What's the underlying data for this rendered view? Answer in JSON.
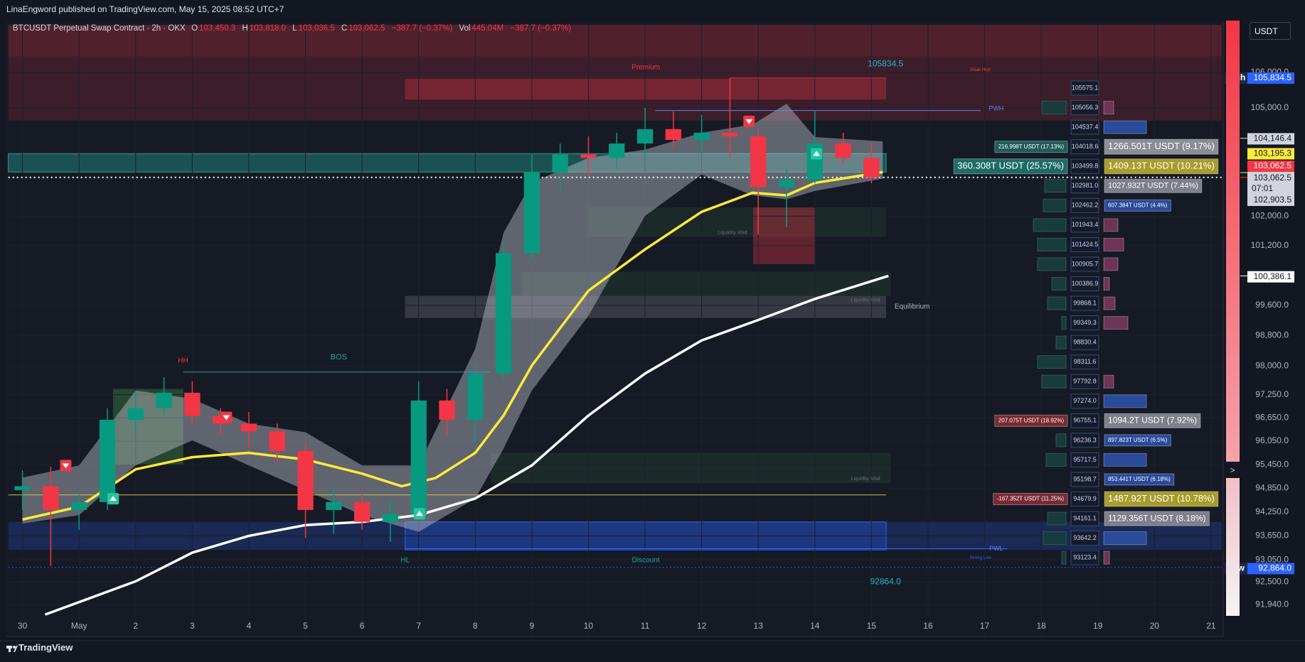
{
  "header": {
    "published": "LinaEngword published on TradingView.com, May 15, 2025 08:52 UTC+7",
    "currency": "USDT",
    "brand": "TradingView"
  },
  "legend": {
    "symbol": "BTCUSDT Perpetual Swap Contract · 2h · OKX",
    "ohlc": [
      {
        "k": "O",
        "v": "103,450.3"
      },
      {
        "k": "H",
        "v": "103,818.0"
      },
      {
        "k": "L",
        "v": "103,036.5"
      },
      {
        "k": "C",
        "v": "103,062.5"
      }
    ],
    "change": "−387.7 (−0.37%)",
    "vol_label": "Vol",
    "vol": "445.04M",
    "vol_change": "−387.7 (−0.37%)"
  },
  "chart_data": {
    "type": "candlestick",
    "log_scale": true,
    "grid": true,
    "up_color": "#089981",
    "down_color": "#f23645",
    "xlim": [
      -0.25,
      21.19
    ],
    "ylim": [
      91167,
      107350
    ],
    "xticks": [
      {
        "value": 0,
        "label": "30"
      },
      {
        "value": 1,
        "label": "May"
      },
      2,
      3,
      4,
      5,
      6,
      7,
      8,
      9,
      10,
      11,
      12,
      13,
      14,
      15,
      16,
      17,
      18,
      19,
      20,
      21
    ],
    "yticks": [
      {
        "value": 106000,
        "label": "106,000.0"
      },
      {
        "value": 105000,
        "label": "105,000.0"
      },
      {
        "value": 102000,
        "label": "102,000.0"
      },
      {
        "value": 101200,
        "label": "101,200.0"
      },
      {
        "value": 99600,
        "label": "99,600.0"
      },
      {
        "value": 98800,
        "label": "98,800.0"
      },
      {
        "value": 98000,
        "label": "98,000.0"
      },
      {
        "value": 97250,
        "label": "97,250.0"
      },
      {
        "value": 96650,
        "label": "96,650.0"
      },
      {
        "value": 96050,
        "label": "96,050.0"
      },
      {
        "value": 95450,
        "label": "95,450.0"
      },
      {
        "value": 94850,
        "label": "94,850.0"
      },
      {
        "value": 94250,
        "label": "94,250.0"
      },
      {
        "value": 93650,
        "label": "93,650.0"
      },
      {
        "value": 93050,
        "label": "93,050.0"
      },
      {
        "value": 92500,
        "label": "92,500.0"
      },
      {
        "value": 91940,
        "label": "91,940.0"
      }
    ],
    "candles": {
      "x": [
        0,
        0.5,
        1,
        1.5,
        2,
        2.5,
        3,
        3.5,
        4,
        4.5,
        5,
        5.5,
        6,
        6.5,
        7,
        7.5,
        8,
        8.5,
        9,
        9.5,
        10,
        10.5,
        11,
        11.5,
        12,
        12.5,
        13,
        13.5,
        14,
        14.5,
        15
      ],
      "open": [
        94800,
        94900,
        94300,
        94500,
        96600,
        96900,
        97300,
        96700,
        96500,
        96300,
        95800,
        94300,
        94500,
        94000,
        94200,
        97100,
        96600,
        97800,
        101000,
        103200,
        103700,
        103600,
        104000,
        104400,
        104100,
        104300,
        104200,
        102800,
        103000,
        104000,
        103600
      ],
      "high": [
        95300,
        95400,
        94700,
        96900,
        97300,
        97700,
        97600,
        96900,
        96800,
        96500,
        96000,
        94900,
        94700,
        94600,
        97600,
        97400,
        98000,
        101300,
        103700,
        104000,
        104200,
        104300,
        105000,
        104900,
        104800,
        105834.5,
        104400,
        103300,
        104900,
        104300,
        104000
      ],
      "low": [
        94300,
        92900,
        93800,
        94300,
        96300,
        96700,
        96500,
        96200,
        95900,
        95500,
        93600,
        93700,
        93800,
        93500,
        94000,
        96200,
        96000,
        97600,
        100800,
        102700,
        103100,
        103300,
        103600,
        103900,
        103700,
        103600,
        101500,
        101700,
        102900,
        103400,
        102900
      ],
      "close": [
        94900,
        94300,
        94500,
        96600,
        96900,
        97300,
        96700,
        96500,
        96300,
        95800,
        94300,
        94500,
        94000,
        94200,
        97100,
        96600,
        97800,
        101000,
        103200,
        103700,
        103600,
        104000,
        104400,
        104100,
        104300,
        104200,
        102800,
        103000,
        104000,
        103600,
        103062.5
      ]
    },
    "lines": [
      {
        "color": "#ffeb3b",
        "width": 3.5,
        "x": [
          0,
          1,
          2,
          3,
          4,
          5,
          6,
          6.7,
          7.3,
          8,
          8.5,
          9,
          10,
          11,
          12,
          12.9,
          13.5,
          14,
          15.2
        ],
        "values": [
          94060,
          94380,
          95330,
          95640,
          95750,
          95580,
          95220,
          94900,
          95110,
          95750,
          96710,
          98010,
          99990,
          101100,
          102120,
          102640,
          102570,
          102910,
          103210
        ]
      },
      {
        "color": "#ffffff",
        "width": 3.5,
        "x": [
          0.4,
          2,
          3,
          4,
          5,
          6,
          7,
          8,
          9,
          10,
          11,
          12,
          13,
          14,
          15.3
        ],
        "values": [
          91700,
          92520,
          93230,
          93650,
          93920,
          94000,
          94170,
          94590,
          95430,
          96710,
          97800,
          98670,
          99210,
          99770,
          100386.1
        ]
      }
    ],
    "band": {
      "color": "rgba(200,202,212,0.42)",
      "x": [
        0,
        1,
        2,
        3,
        4,
        5,
        6,
        7,
        8,
        8.5,
        9,
        10,
        11,
        12,
        12.9,
        13.5,
        14,
        15.2
      ],
      "upper": [
        95120,
        95430,
        97360,
        97140,
        96500,
        96280,
        95430,
        95430,
        98450,
        101550,
        102920,
        103600,
        103830,
        104300,
        104530,
        105110,
        104180,
        104060
      ],
      "lower": [
        93960,
        94170,
        95430,
        96070,
        95430,
        94800,
        94170,
        93750,
        94590,
        95860,
        97360,
        99320,
        102010,
        103140,
        102570,
        102460,
        102690,
        103030
      ]
    },
    "zones": [
      {
        "x": [
          -0.25,
          21.19
        ],
        "y": [
          104640,
          107350
        ],
        "color": "rgba(242,54,69,0.17)"
      },
      {
        "x": [
          -0.25,
          21.19
        ],
        "y": [
          106450,
          107350
        ],
        "color": "rgba(242,54,69,0.12)"
      },
      {
        "x": [
          6.76,
          15.26
        ],
        "y": [
          105230,
          105810
        ],
        "color": "rgba(242,54,69,0.32)"
      },
      {
        "x": [
          -0.25,
          15.26
        ],
        "y": [
          103210,
          103720
        ],
        "color": "rgba(38,166,154,0.4)",
        "border": "#2a9d8f"
      },
      {
        "x": [
          9.97,
          15.26
        ],
        "y": [
          101440,
          102240
        ],
        "color": "rgba(76,175,80,0.1)"
      },
      {
        "x": [
          12.91,
          14.01
        ],
        "y": [
          100700,
          102240
        ],
        "color": "rgba(242,54,69,0.35)"
      },
      {
        "x": [
          8.84,
          15.34
        ],
        "y": [
          99850,
          100500
        ],
        "color": "rgba(76,175,80,0.12)"
      },
      {
        "x": [
          6.76,
          15.26
        ],
        "y": [
          99260,
          99850
        ],
        "color": "rgba(200,200,210,0.18)"
      },
      {
        "x": [
          8.28,
          15.34
        ],
        "y": [
          94980,
          95750
        ],
        "color": "rgba(76,175,80,0.12)"
      },
      {
        "x": [
          -0.25,
          21.19
        ],
        "y": [
          93300,
          94000
        ],
        "color": "rgba(41,98,255,0.22)"
      },
      {
        "x": [
          6.76,
          15.26
        ],
        "y": [
          93300,
          94000
        ],
        "color": "rgba(41,98,255,0.25)",
        "border": "#2962ff"
      },
      {
        "x": [
          1.6,
          2.84
        ],
        "y": [
          95440,
          97400
        ],
        "color": "rgba(76,175,80,0.3)"
      }
    ],
    "levels": [
      {
        "x": [
          12.5,
          15.26
        ],
        "value": 105834.5,
        "color": "#f23645"
      },
      {
        "x": [
          11.18,
          16.93
        ],
        "value": 104920,
        "color": "#5b7fff"
      },
      {
        "x": [
          2.84,
          8.28
        ],
        "value": 97840,
        "color": "#26a69a"
      },
      {
        "x": [
          -0.25,
          15.26
        ],
        "value": 94680,
        "color": "#c9c23a"
      },
      {
        "x": [
          6.76,
          17.4
        ],
        "value": 93330,
        "color": "#2962ff"
      },
      {
        "x": [
          -0.25,
          21.19
        ],
        "value": 92864,
        "color": "#2962ff",
        "dashed": true
      }
    ],
    "annotations": [
      {
        "text": "Premium",
        "color": "#f23645"
      },
      {
        "text": "105834.5",
        "color": "#22b5c8"
      },
      {
        "text": "Weak High",
        "color": "#f23645"
      },
      {
        "text": "PWH",
        "color": "#5b7fff"
      },
      {
        "text": "Liquidity Void",
        "color": "#6a6d78"
      },
      {
        "text": "Liquidity Void",
        "color": "#6a6d78"
      },
      {
        "text": "Equilibrium",
        "color": "#b2b5be"
      },
      {
        "text": "HH",
        "color": "#f23645"
      },
      {
        "text": "BOS",
        "color": "#26a69a"
      },
      {
        "text": "Liquidity Void",
        "color": "#6a6d78"
      },
      {
        "text": "PWL",
        "color": "#5b7fff"
      },
      {
        "text": "Strong Low",
        "color": "#2962ff"
      },
      {
        "text": "HL",
        "color": "#26a69a"
      },
      {
        "text": "Discount",
        "color": "#26a69a"
      },
      {
        "text": "92864.0",
        "color": "#22b5c8"
      }
    ],
    "price_labels": [
      {
        "tag": "High",
        "value": 105834.5,
        "label": "105,834.5",
        "color": "#2962ff"
      },
      {
        "value": 104146.4,
        "label": "104,146.4",
        "color": "#d1d4dc"
      },
      {
        "value": 103195.3,
        "label": "103,195.3",
        "color": "#ffeb3b"
      },
      {
        "value": 103062.5,
        "label": "103,062.5",
        "color": "#f23645",
        "line": "dotted"
      },
      {
        "value": 100386.1,
        "label": "100,386.1",
        "color": "#ffffff"
      },
      {
        "tag": "Low",
        "value": 92864.0,
        "label": "92,864.0",
        "color": "#2962ff"
      }
    ],
    "last_block": {
      "price": "103,062.5",
      "countdown": "07:01",
      "prev": "102,903.5"
    },
    "profile": [
      {
        "price": "105575.1"
      },
      {
        "price": "105056.3"
      },
      {
        "price": "104537.4"
      },
      {
        "price": "104018.6",
        "left": "216.998T USDT (17.13%)",
        "left_color": "#1e5c58",
        "right": "1266.501T USDT (9.17%)",
        "right_color": "#8a8d96"
      },
      {
        "price": "103499.8",
        "left": "360.308T USDT (25.57%)",
        "left_color": "#1e6b66",
        "right": "1409.13T USDT (10.21%)",
        "right_color": "#a89c2c"
      },
      {
        "price": "102981.0",
        "right": "1027.932T USDT (7.44%)",
        "right_color": "#7d808a"
      },
      {
        "price": "102462.2",
        "right": "607.384T USDT (4.4%)",
        "right_color": "#2a4a9a"
      },
      {
        "price": "101943.4"
      },
      {
        "price": "101424.5"
      },
      {
        "price": "100905.7"
      },
      {
        "price": "100386.9"
      },
      {
        "price": "99868.1"
      },
      {
        "price": "99349.3"
      },
      {
        "price": "98830.4"
      },
      {
        "price": "98311.6"
      },
      {
        "price": "97792.8"
      },
      {
        "price": "97274.0"
      },
      {
        "price": "96755.1",
        "left": "207.075T USDT (18.92%)",
        "left_color": "#7a2a33",
        "right": "1094.2T USDT (7.92%)",
        "right_color": "#7d808a"
      },
      {
        "price": "96236.3",
        "right": "897.823T USDT (6.5%)",
        "right_color": "#2a4a9a"
      },
      {
        "price": "95717.5"
      },
      {
        "price": "95198.7",
        "right": "853.441T USDT (6.18%)",
        "right_color": "#2a4a9a"
      },
      {
        "price": "94679.9",
        "left": "-167.352T USDT (11.25%)",
        "left_color": "#7a2a33",
        "right": "1487.92T USDT (10.78%)",
        "right_color": "#a89c2c"
      },
      {
        "price": "94161.1",
        "right": "1129.356T USDT (8.18%)",
        "right_color": "#7d808a"
      },
      {
        "price": "93642.2"
      },
      {
        "price": "93123.4"
      }
    ]
  }
}
